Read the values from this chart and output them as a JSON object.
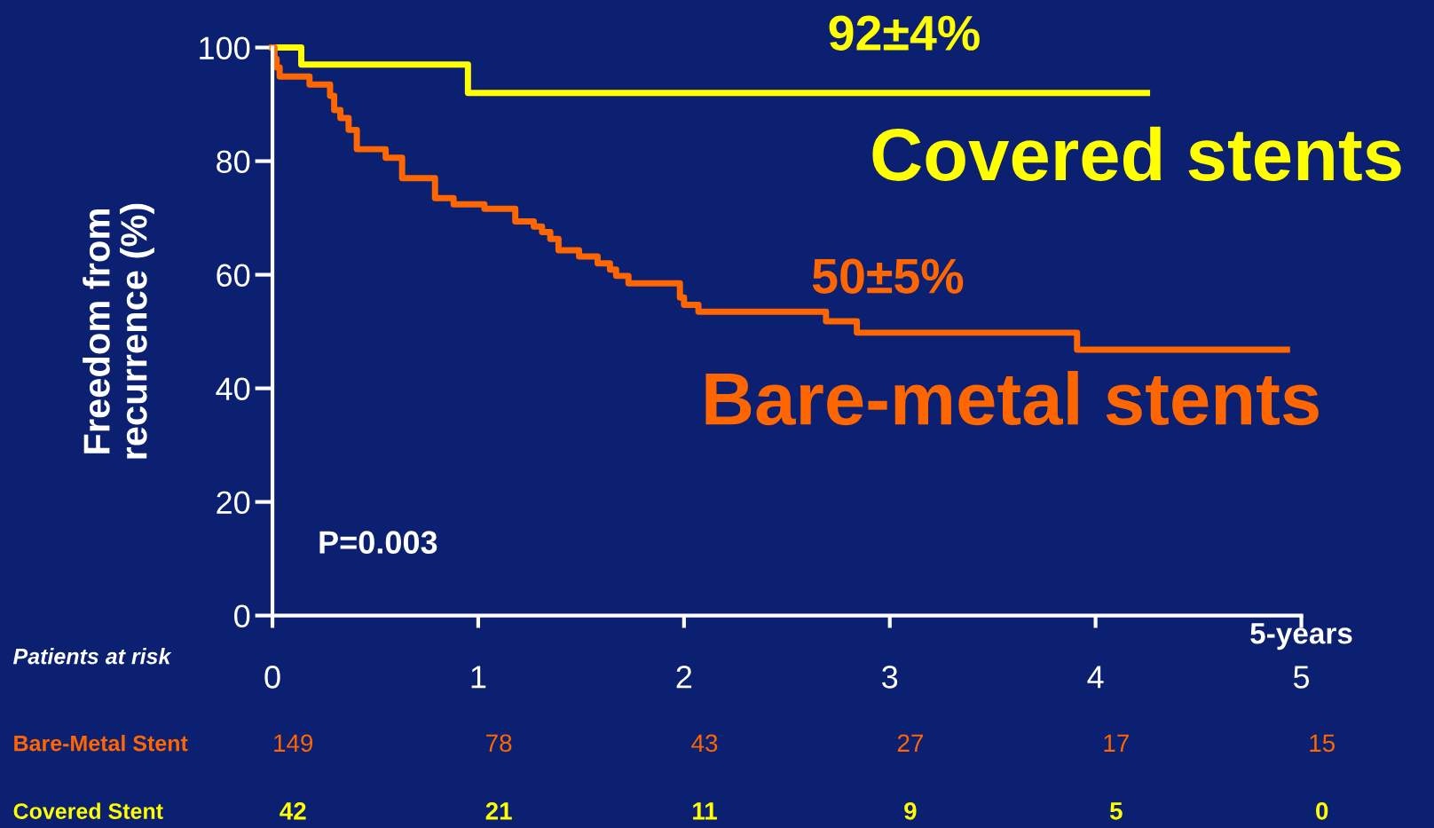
{
  "chart_data": {
    "type": "step",
    "xlabel": "5-years",
    "ylabel": "Freedom from\nrecurrence (%)",
    "xlim": [
      0,
      5
    ],
    "xticks": [
      0,
      1,
      2,
      3,
      4,
      5
    ],
    "ylim": [
      0,
      100
    ],
    "yticks": [
      0,
      20,
      40,
      60,
      80,
      100
    ],
    "grid": false,
    "legend": false,
    "series": [
      {
        "name": "Covered stents",
        "color": "#ffff00",
        "x": [
          0,
          0.14,
          0.95,
          4.25
        ],
        "values": [
          100,
          97,
          92,
          92
        ]
      },
      {
        "name": "Bare-metal stents",
        "color": "#ff6600",
        "x": [
          0,
          0.01,
          0.02,
          0.035,
          0.18,
          0.28,
          0.3,
          0.33,
          0.37,
          0.41,
          0.55,
          0.63,
          0.79,
          0.88,
          1.03,
          1.18,
          1.27,
          1.31,
          1.35,
          1.39,
          1.49,
          1.58,
          1.64,
          1.67,
          1.73,
          1.98,
          2.0,
          2.07,
          2.69,
          2.84,
          3.91,
          4.93
        ],
        "values": [
          100,
          98,
          96.5,
          94.9,
          93.5,
          91.5,
          89,
          87.6,
          85.5,
          82.1,
          80.6,
          77,
          73.5,
          72.4,
          71.6,
          69.4,
          68.5,
          67.5,
          66.3,
          64.3,
          63.2,
          62,
          60.9,
          59.8,
          58.5,
          56,
          54.7,
          53.5,
          51.8,
          49.8,
          46.8,
          46.8
        ]
      }
    ],
    "annotations": [
      "92±4%",
      "50±5%",
      "P=0.003",
      "Patients at risk",
      "Bare-Metal Stent",
      "Covered Stent",
      "149",
      "78",
      "43",
      "27",
      "17",
      "15",
      "42",
      "21",
      "11",
      "9",
      "5",
      "0"
    ]
  }
}
